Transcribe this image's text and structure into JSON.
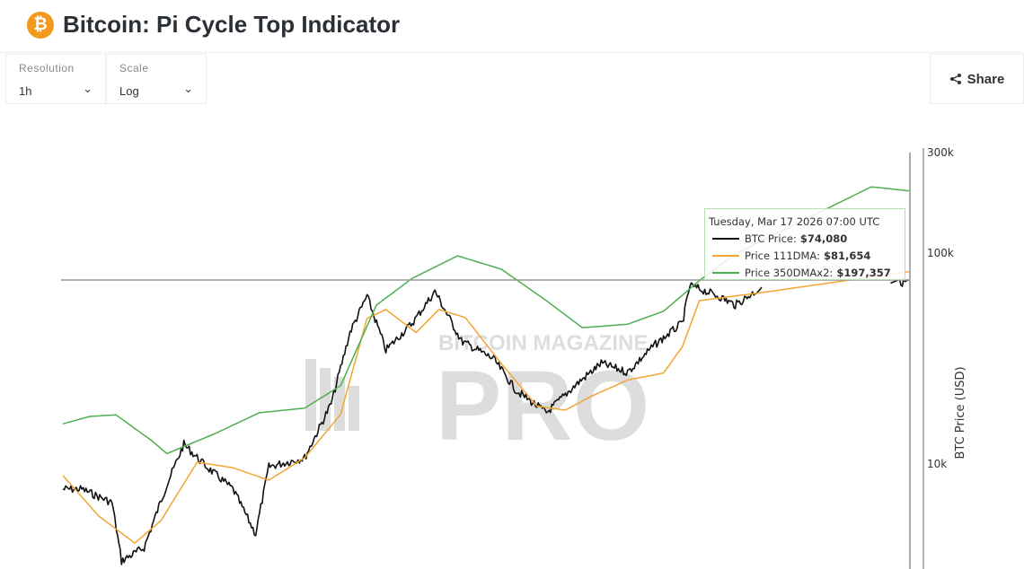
{
  "header": {
    "title": "Bitcoin: Pi Cycle Top Indicator",
    "logo_glyph": "₿"
  },
  "controls": {
    "resolution_label": "Resolution",
    "resolution_value": "1h",
    "scale_label": "Scale",
    "scale_value": "Log",
    "share_label": "Share"
  },
  "watermark": {
    "line1": "BITCOIN MAGAZINE",
    "line2": "PRO"
  },
  "tooltip": {
    "date": "Tuesday, Mar 17 2026 07:00 UTC",
    "rows": [
      {
        "label": "BTC Price:",
        "value": "$74,080",
        "color": "#111111"
      },
      {
        "label": "Price 111DMA:",
        "value": "$81,654",
        "color": "#f2a531"
      },
      {
        "label": "Price 350DMAx2:",
        "value": "$197,357",
        "color": "#4caf50"
      }
    ]
  },
  "chart_data": {
    "type": "line",
    "title": "Bitcoin: Pi Cycle Top Indicator",
    "ylabel": "BTC Price (USD)",
    "yscale": "log",
    "ylim": [
      2900,
      300000
    ],
    "yticks": [
      {
        "v": 300000,
        "label": "300k"
      },
      {
        "v": 100000,
        "label": "100k"
      },
      {
        "v": 10000,
        "label": "10k"
      }
    ],
    "xlim": [
      2019.88,
      2024.37
    ],
    "crosshair_value": 74080,
    "series": [
      {
        "name": "BTC Price",
        "color": "#111111",
        "points": [
          [
            2019.89,
            7600
          ],
          [
            2019.99,
            7600
          ],
          [
            2020.15,
            6560
          ],
          [
            2020.2,
            3470
          ],
          [
            2020.32,
            4020
          ],
          [
            2020.44,
            7980
          ],
          [
            2020.53,
            12400
          ],
          [
            2020.65,
            9700
          ],
          [
            2020.79,
            7600
          ],
          [
            2020.91,
            4660
          ],
          [
            2020.98,
            9700
          ],
          [
            2021.17,
            10700
          ],
          [
            2021.31,
            19300
          ],
          [
            2021.41,
            42200
          ],
          [
            2021.5,
            62600
          ],
          [
            2021.6,
            34700
          ],
          [
            2021.74,
            46600
          ],
          [
            2021.86,
            65800
          ],
          [
            2022.0,
            38300
          ],
          [
            2022.17,
            31500
          ],
          [
            2022.29,
            22300
          ],
          [
            2022.45,
            17500
          ],
          [
            2022.6,
            23500
          ],
          [
            2022.74,
            30000
          ],
          [
            2022.88,
            27200
          ],
          [
            2023.02,
            36500
          ],
          [
            2023.17,
            46600
          ],
          [
            2023.21,
            70300
          ],
          [
            2023.36,
            62600
          ],
          [
            2023.45,
            56700
          ],
          [
            2023.59,
            68900
          ],
          [
            2024.32,
            72000
          ],
          [
            2024.37,
            74080
          ]
        ]
      },
      {
        "name": "Price 111DMA",
        "color": "#f2a531",
        "points": [
          [
            2019.89,
            8800
          ],
          [
            2020.08,
            5660
          ],
          [
            2020.27,
            4220
          ],
          [
            2020.41,
            5400
          ],
          [
            2020.6,
            10200
          ],
          [
            2020.79,
            9600
          ],
          [
            2020.98,
            8380
          ],
          [
            2021.17,
            10700
          ],
          [
            2021.36,
            17200
          ],
          [
            2021.5,
            49000
          ],
          [
            2021.6,
            54000
          ],
          [
            2021.76,
            42000
          ],
          [
            2021.88,
            54000
          ],
          [
            2022.02,
            49500
          ],
          [
            2022.21,
            30000
          ],
          [
            2022.4,
            18800
          ],
          [
            2022.55,
            18000
          ],
          [
            2022.69,
            21000
          ],
          [
            2022.88,
            25000
          ],
          [
            2023.07,
            27000
          ],
          [
            2023.17,
            36000
          ],
          [
            2023.26,
            59500
          ],
          [
            2023.59,
            65000
          ],
          [
            2024.37,
            81654
          ]
        ]
      },
      {
        "name": "Price 350DMAx2",
        "color": "#4caf50",
        "points": [
          [
            2019.89,
            15500
          ],
          [
            2020.03,
            16800
          ],
          [
            2020.17,
            17100
          ],
          [
            2020.36,
            12900
          ],
          [
            2020.44,
            11200
          ],
          [
            2020.7,
            14000
          ],
          [
            2020.93,
            17500
          ],
          [
            2021.17,
            18400
          ],
          [
            2021.36,
            23500
          ],
          [
            2021.55,
            56700
          ],
          [
            2021.74,
            76000
          ],
          [
            2021.98,
            97000
          ],
          [
            2022.21,
            84000
          ],
          [
            2022.45,
            59500
          ],
          [
            2022.64,
            44300
          ],
          [
            2022.88,
            46000
          ],
          [
            2023.07,
            53000
          ],
          [
            2023.26,
            74000
          ],
          [
            2023.45,
            99000
          ],
          [
            2023.83,
            146000
          ],
          [
            2024.17,
            206000
          ],
          [
            2024.37,
            197357
          ]
        ]
      }
    ]
  }
}
